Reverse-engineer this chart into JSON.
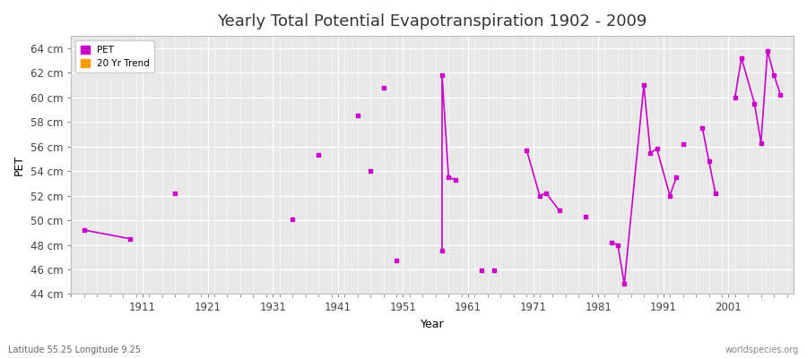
{
  "title": "Yearly Total Potential Evapotranspiration 1902 - 2009",
  "xlabel": "Year",
  "ylabel": "PET",
  "fig_bg": "#ffffff",
  "plot_bg": "#e8e8e8",
  "ylim": [
    44,
    65
  ],
  "xlim": [
    1900,
    2011
  ],
  "yticks": [
    44,
    46,
    48,
    50,
    52,
    54,
    56,
    58,
    60,
    62,
    64
  ],
  "ytick_labels": [
    "44 cm",
    "46 cm",
    "48 cm",
    "50 cm",
    "52 cm",
    "54 cm",
    "56 cm",
    "58 cm",
    "60 cm",
    "62 cm",
    "64 cm"
  ],
  "xticks": [
    1911,
    1921,
    1931,
    1941,
    1951,
    1961,
    1971,
    1981,
    1991,
    2001
  ],
  "pet_color": "#cc00cc",
  "trend_color": "#ff9900",
  "connected_segments": [
    [
      [
        1902,
        49.2
      ],
      [
        1909,
        48.5
      ]
    ],
    [
      [
        1957,
        47.5
      ],
      [
        1957,
        61.8
      ],
      [
        1958,
        53.5
      ],
      [
        1959,
        53.3
      ]
    ],
    [
      [
        1970,
        55.7
      ],
      [
        1972,
        52.0
      ],
      [
        1973,
        52.2
      ],
      [
        1975,
        50.8
      ]
    ],
    [
      [
        1983,
        48.2
      ],
      [
        1984,
        48.0
      ],
      [
        1985,
        44.8
      ],
      [
        1988,
        61.0
      ],
      [
        1989,
        55.5
      ],
      [
        1990,
        55.8
      ],
      [
        1992,
        52.0
      ],
      [
        1993,
        53.5
      ]
    ],
    [
      [
        1997,
        57.5
      ],
      [
        1998,
        54.8
      ],
      [
        1999,
        52.2
      ]
    ],
    [
      [
        2002,
        60.0
      ],
      [
        2003,
        63.2
      ],
      [
        2005,
        59.5
      ],
      [
        2006,
        56.3
      ],
      [
        2007,
        63.8
      ],
      [
        2008,
        61.8
      ],
      [
        2009,
        60.2
      ]
    ]
  ],
  "isolated_points": [
    [
      1916,
      52.2
    ],
    [
      1934,
      50.1
    ],
    [
      1938,
      55.3
    ],
    [
      1944,
      58.5
    ],
    [
      1946,
      54.0
    ],
    [
      1948,
      60.8
    ],
    [
      1950,
      46.7
    ],
    [
      1963,
      45.9
    ],
    [
      1965,
      45.9
    ],
    [
      1979,
      50.3
    ],
    [
      1994,
      56.2
    ]
  ],
  "legend_pet_label": "PET",
  "legend_trend_label": "20 Yr Trend",
  "subtitle": "Latitude 55.25 Longitude 9.25",
  "watermark": "worldspecies.org",
  "title_fontsize": 13,
  "axis_label_fontsize": 9,
  "tick_fontsize": 8.5
}
